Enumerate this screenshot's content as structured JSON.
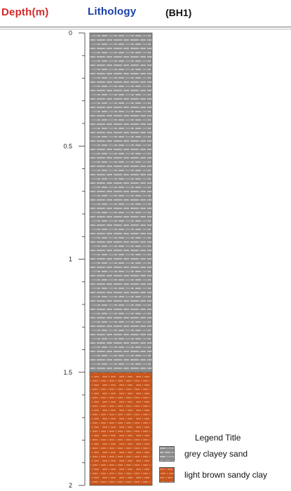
{
  "header": {
    "depth_label": "Depth(m)",
    "lithology_label": "Lithology",
    "borehole_label": "(BH1)"
  },
  "colors": {
    "depth_label": "#d42a2a",
    "lithology_label": "#1a3fa8",
    "grey_clayey_sand": "#8c8c8c",
    "light_brown_sandy_clay": "#c8541c"
  },
  "chart_data": {
    "type": "strip-log",
    "depth_range": [
      0,
      2
    ],
    "depth_ticks": [
      {
        "value": 0,
        "label": "0"
      },
      {
        "value": 0.5,
        "label": "0.5"
      },
      {
        "value": 1,
        "label": "1"
      },
      {
        "value": 1.5,
        "label": "1.5"
      },
      {
        "value": 2,
        "label": "2"
      }
    ],
    "minor_tick_step": 0.1,
    "layers": [
      {
        "from": 0,
        "to": 1.5,
        "lithology": "grey clayey sand"
      },
      {
        "from": 1.5,
        "to": 2,
        "lithology": "light brown sandy clay"
      }
    ],
    "legend": {
      "title": "Legend Title",
      "entries": [
        {
          "label": "grey clayey sand",
          "key": "grey_clayey_sand"
        },
        {
          "label": "light brown sandy clay",
          "key": "light_brown_sandy_clay"
        }
      ]
    }
  }
}
